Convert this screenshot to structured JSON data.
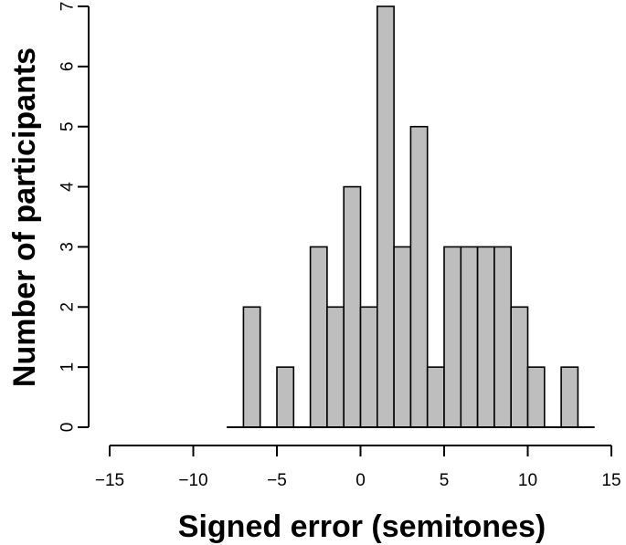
{
  "chart_data": {
    "type": "bar",
    "subtype": "histogram",
    "title": "",
    "xlabel": "Signed error (semitones)",
    "ylabel": "Number of participants",
    "xlim": [
      -15,
      15
    ],
    "ylim": [
      0,
      7
    ],
    "x_ticks": [
      -15,
      -10,
      -5,
      0,
      5,
      10,
      15
    ],
    "x_tick_labels": [
      "−15",
      "−10",
      "−5",
      "0",
      "5",
      "10",
      "15"
    ],
    "y_ticks": [
      0,
      1,
      2,
      3,
      4,
      5,
      6,
      7
    ],
    "y_tick_labels": [
      "0",
      "1",
      "2",
      "3",
      "4",
      "5",
      "6",
      "7"
    ],
    "bin_width": 1,
    "bins": [
      {
        "start": -8,
        "end": -7,
        "count": 0
      },
      {
        "start": -7,
        "end": -6,
        "count": 2
      },
      {
        "start": -6,
        "end": -5,
        "count": 0
      },
      {
        "start": -5,
        "end": -4,
        "count": 1
      },
      {
        "start": -4,
        "end": -3,
        "count": 0
      },
      {
        "start": -3,
        "end": -2,
        "count": 3
      },
      {
        "start": -2,
        "end": -1,
        "count": 2
      },
      {
        "start": -1,
        "end": 0,
        "count": 4
      },
      {
        "start": 0,
        "end": 1,
        "count": 2
      },
      {
        "start": 1,
        "end": 2,
        "count": 7
      },
      {
        "start": 2,
        "end": 3,
        "count": 3
      },
      {
        "start": 3,
        "end": 4,
        "count": 5
      },
      {
        "start": 4,
        "end": 5,
        "count": 1
      },
      {
        "start": 5,
        "end": 6,
        "count": 3
      },
      {
        "start": 6,
        "end": 7,
        "count": 3
      },
      {
        "start": 7,
        "end": 8,
        "count": 3
      },
      {
        "start": 8,
        "end": 9,
        "count": 3
      },
      {
        "start": 9,
        "end": 10,
        "count": 2
      },
      {
        "start": 10,
        "end": 11,
        "count": 1
      },
      {
        "start": 11,
        "end": 12,
        "count": 0
      },
      {
        "start": 12,
        "end": 13,
        "count": 1
      },
      {
        "start": 13,
        "end": 14,
        "count": 0
      }
    ],
    "bar_color": "#bebebe",
    "grid": false,
    "legend": "none"
  }
}
